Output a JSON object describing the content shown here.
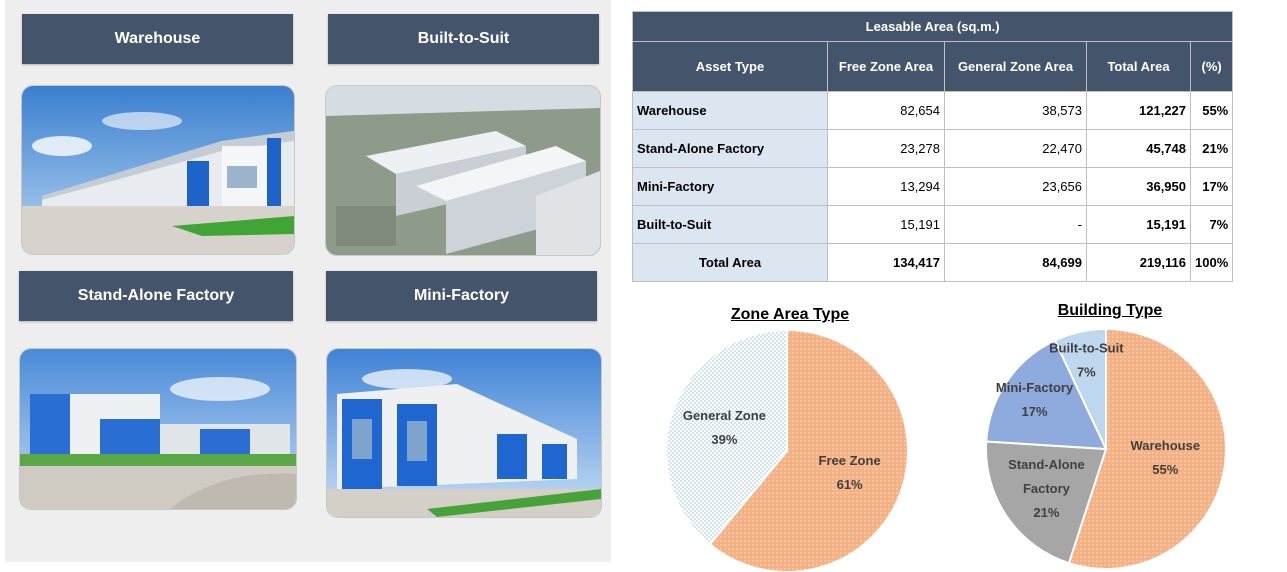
{
  "assets": {
    "warehouse": "Warehouse",
    "built_to_suit": "Built-to-Suit",
    "stand_alone": "Stand-Alone Factory",
    "mini_factory": "Mini-Factory"
  },
  "table": {
    "title": "Leasable Area (sq.m.)",
    "headers": [
      "Asset Type",
      "Free Zone Area",
      "General Zone Area",
      "Total Area",
      "(%)"
    ],
    "rows": [
      [
        "Warehouse",
        "82,654",
        "38,573",
        "121,227",
        "55%"
      ],
      [
        "Stand-Alone Factory",
        "23,278",
        "22,470",
        "45,748",
        "21%"
      ],
      [
        "Mini-Factory",
        "13,294",
        "23,656",
        "36,950",
        "17%"
      ],
      [
        "Built-to-Suit",
        "15,191",
        "-",
        "15,191",
        "7%"
      ]
    ],
    "total": [
      "Total Area",
      "134,417",
      "84,699",
      "219,116",
      "100%"
    ]
  },
  "chart_data": [
    {
      "type": "pie",
      "title": "Zone Area Type",
      "categories": [
        "Free Zone",
        "General Zone"
      ],
      "values": [
        61,
        39
      ],
      "labels": [
        "61%",
        "39%"
      ],
      "colors": [
        "#f4b183",
        "#bdd7ee"
      ]
    },
    {
      "type": "pie",
      "title": "Building Type",
      "categories": [
        "Warehouse",
        "Stand-Alone Factory",
        "Mini-Factory",
        "Built-to-Suit"
      ],
      "label_lines": [
        [
          "Warehouse"
        ],
        [
          "Stand-Alone",
          "Factory"
        ],
        [
          "Mini-Factory"
        ],
        [
          "Built-to-Suit"
        ]
      ],
      "values": [
        55,
        21,
        17,
        7
      ],
      "labels": [
        "55%",
        "21%",
        "17%",
        "7%"
      ],
      "colors": [
        "#f4b183",
        "#a6a6a6",
        "#8faadc",
        "#bdd7ee"
      ]
    }
  ]
}
